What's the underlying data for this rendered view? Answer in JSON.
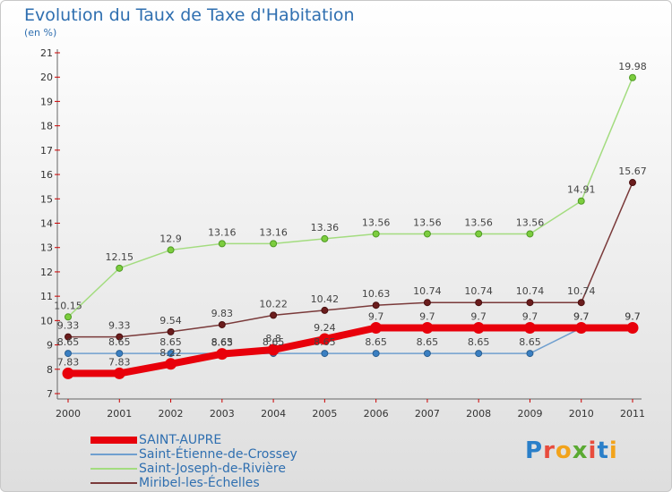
{
  "title": "Evolution du Taux de Taxe d'Habitation",
  "unit": "(en %)",
  "logo": {
    "text": "Proxiti",
    "colors": [
      "#2a7fc9",
      "#e84c3d",
      "#f2a31b",
      "#5aaa32",
      "#e84c3d",
      "#2a7fc9",
      "#f2a31b"
    ]
  },
  "chart_data": {
    "type": "line",
    "title": "Evolution du Taux de Taxe d'Habitation",
    "ylabel": "(en %)",
    "xlabel": "",
    "x": [
      "2000",
      "2001",
      "2002",
      "2003",
      "2004",
      "2005",
      "2006",
      "2007",
      "2008",
      "2009",
      "2010",
      "2011"
    ],
    "ylim": [
      7,
      21
    ],
    "yticks": [
      "7",
      "8",
      "9",
      "10",
      "11",
      "12",
      "13",
      "14",
      "15",
      "16",
      "17",
      "18",
      "19",
      "20",
      "21"
    ],
    "grid": false,
    "legend_position": "bottom-left",
    "series": [
      {
        "name": "SAINT-AUPRE",
        "color": "#e8000b",
        "values": [
          7.83,
          7.83,
          8.22,
          8.63,
          8.8,
          9.24,
          9.7,
          9.7,
          9.7,
          9.7,
          9.7,
          9.7
        ],
        "labels": [
          "7.83",
          "7.83",
          "8.22",
          "8.63",
          "8.8",
          "9.24",
          "9.7",
          "9.7",
          "9.7",
          "9.7",
          "9.7",
          "9.7"
        ]
      },
      {
        "name": "Saint-Étienne-de-Crossey",
        "color": "#6f9fcf",
        "values": [
          8.65,
          8.65,
          8.65,
          8.65,
          8.65,
          8.65,
          8.65,
          8.65,
          8.65,
          8.65,
          9.7,
          9.7
        ],
        "labels": [
          "8.65",
          "8.65",
          "8.65",
          "8.65",
          "8.65",
          "8.65",
          "8.65",
          "8.65",
          "8.65",
          "8.65",
          "9.7",
          "9.7"
        ]
      },
      {
        "name": "Saint-Joseph-de-Rivière",
        "color": "#a3dc7f",
        "values": [
          10.15,
          12.15,
          12.9,
          13.16,
          13.16,
          13.36,
          13.56,
          13.56,
          13.56,
          13.56,
          14.91,
          19.98
        ],
        "labels": [
          "10.15",
          "12.15",
          "12.9",
          "13.16",
          "13.16",
          "13.36",
          "13.56",
          "13.56",
          "13.56",
          "13.56",
          "14.91",
          "19.98"
        ]
      },
      {
        "name": "Miribel-les-Échelles",
        "color": "#7a3a3a",
        "values": [
          9.33,
          9.33,
          9.54,
          9.83,
          10.22,
          10.42,
          10.63,
          10.74,
          10.74,
          10.74,
          10.74,
          15.67
        ],
        "labels": [
          "9.33",
          "9.33",
          "9.54",
          "9.83",
          "10.22",
          "10.42",
          "10.63",
          "10.74",
          "10.74",
          "10.74",
          "10.74",
          "15.67"
        ]
      }
    ]
  }
}
